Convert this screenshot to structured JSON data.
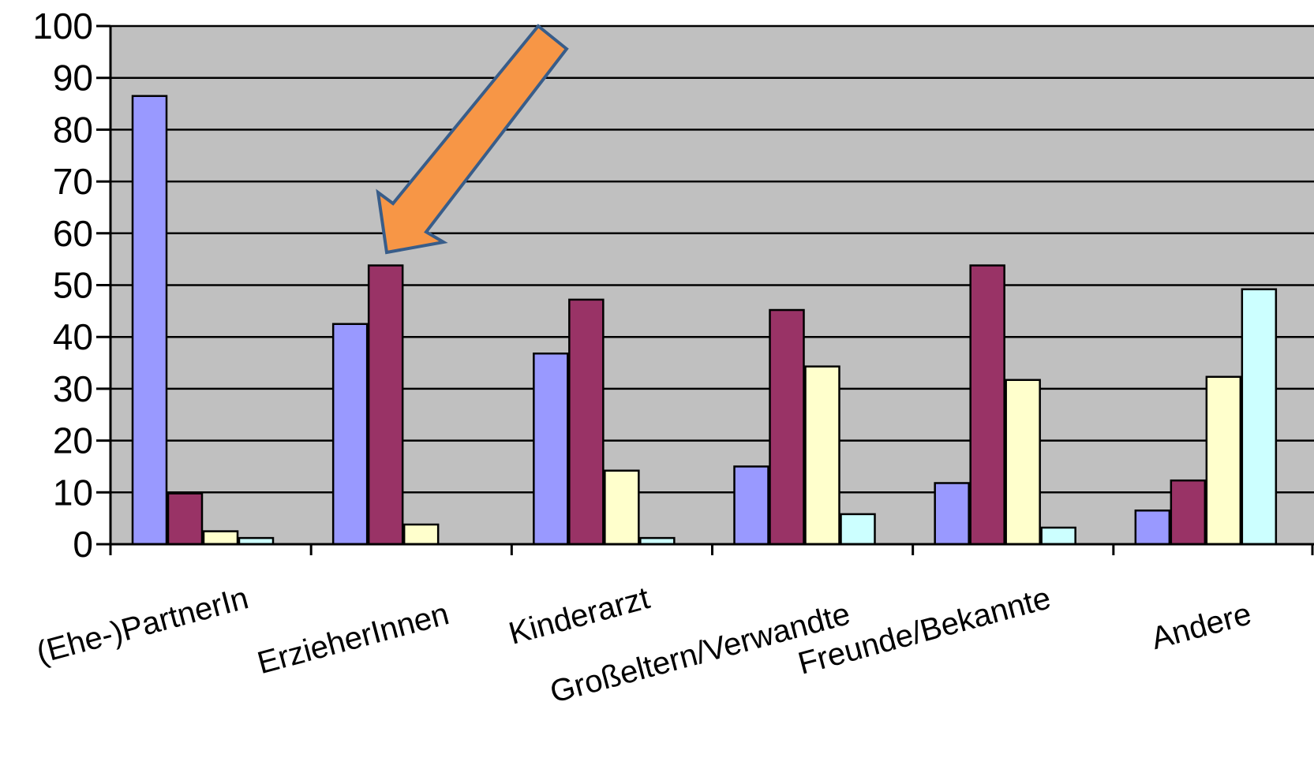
{
  "chart_data": {
    "type": "bar",
    "title": "",
    "xlabel": "",
    "ylabel": "",
    "ylim": [
      0,
      100
    ],
    "yticks": [
      "0",
      "10",
      "20",
      "30",
      "40",
      "50",
      "60",
      "70",
      "80",
      "90",
      "100"
    ],
    "categories": [
      "(Ehe-)PartnerIn",
      "ErzieherInnen",
      "Kinderarzt",
      "Großeltern/Verwandte",
      "Freunde/Bekannte",
      "Andere"
    ],
    "series": [
      {
        "color": "#9999ff",
        "values": [
          86.5,
          42.5,
          36.8,
          15,
          11.8,
          6.5
        ]
      },
      {
        "color": "#993366",
        "values": [
          9.8,
          53.8,
          47.2,
          45.2,
          53.8,
          12.3
        ]
      },
      {
        "color": "#ffffcc",
        "values": [
          2.5,
          3.8,
          14.2,
          34.3,
          31.7,
          32.3
        ]
      },
      {
        "color": "#ccffff",
        "values": [
          1.2,
          0,
          1.2,
          5.8,
          3.2,
          49.2
        ]
      }
    ],
    "grid": true,
    "plot_background": "#c0c0c0",
    "annotation": {
      "type": "arrow",
      "color": "#f79646",
      "stroke": "#385d8a"
    }
  }
}
